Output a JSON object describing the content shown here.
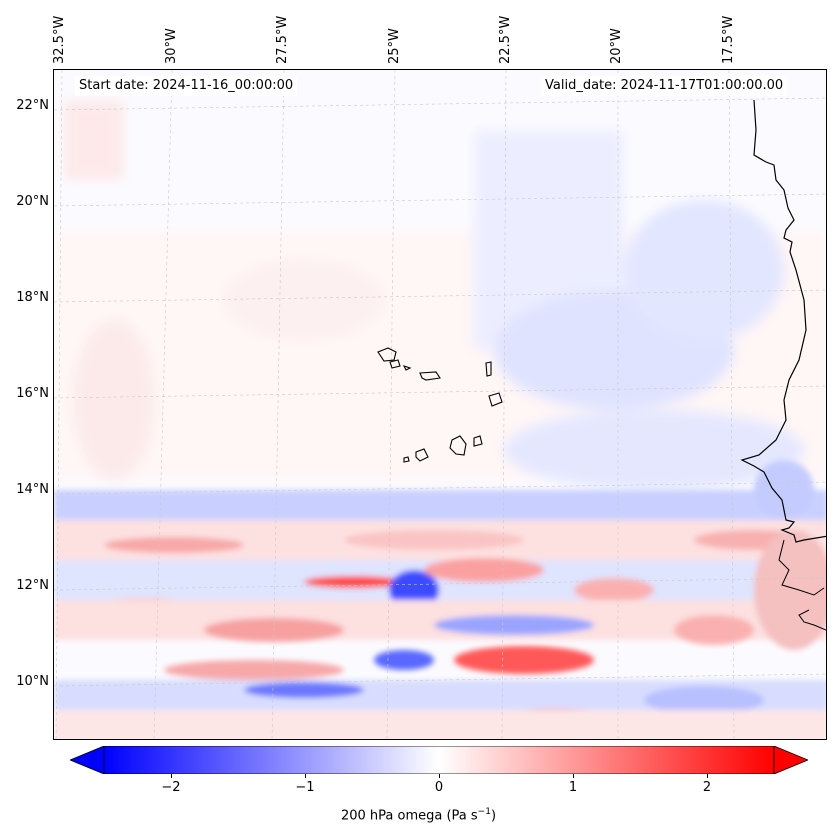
{
  "header": {
    "start_date": "Start date: 2024-11-16_00:00:00",
    "valid_date": "Valid_date: 2024-11-17T01:00:00.00"
  },
  "axes": {
    "lon_labels": [
      "32.5°W",
      "30°W",
      "27.5°W",
      "25°W",
      "22.5°W",
      "20°W",
      "17.5°W"
    ],
    "lat_labels": [
      "22°N",
      "20°N",
      "18°N",
      "16°N",
      "14°N",
      "12°N",
      "10°N"
    ]
  },
  "colorbar": {
    "label_prefix": "200 hPa omega (Pa s",
    "label_exp": "−1",
    "label_suffix": ")",
    "ticks": [
      "−2",
      "−1",
      "0",
      "1",
      "2"
    ],
    "range": [
      -2.5,
      2.5
    ],
    "colormap": "bwr",
    "low_color": "#0000ff",
    "mid_color": "#ffffff",
    "high_color": "#ff0000"
  },
  "map": {
    "field": "200 hPa omega",
    "coastline_color": "#000000",
    "gridline_style": "dashed-light"
  }
}
